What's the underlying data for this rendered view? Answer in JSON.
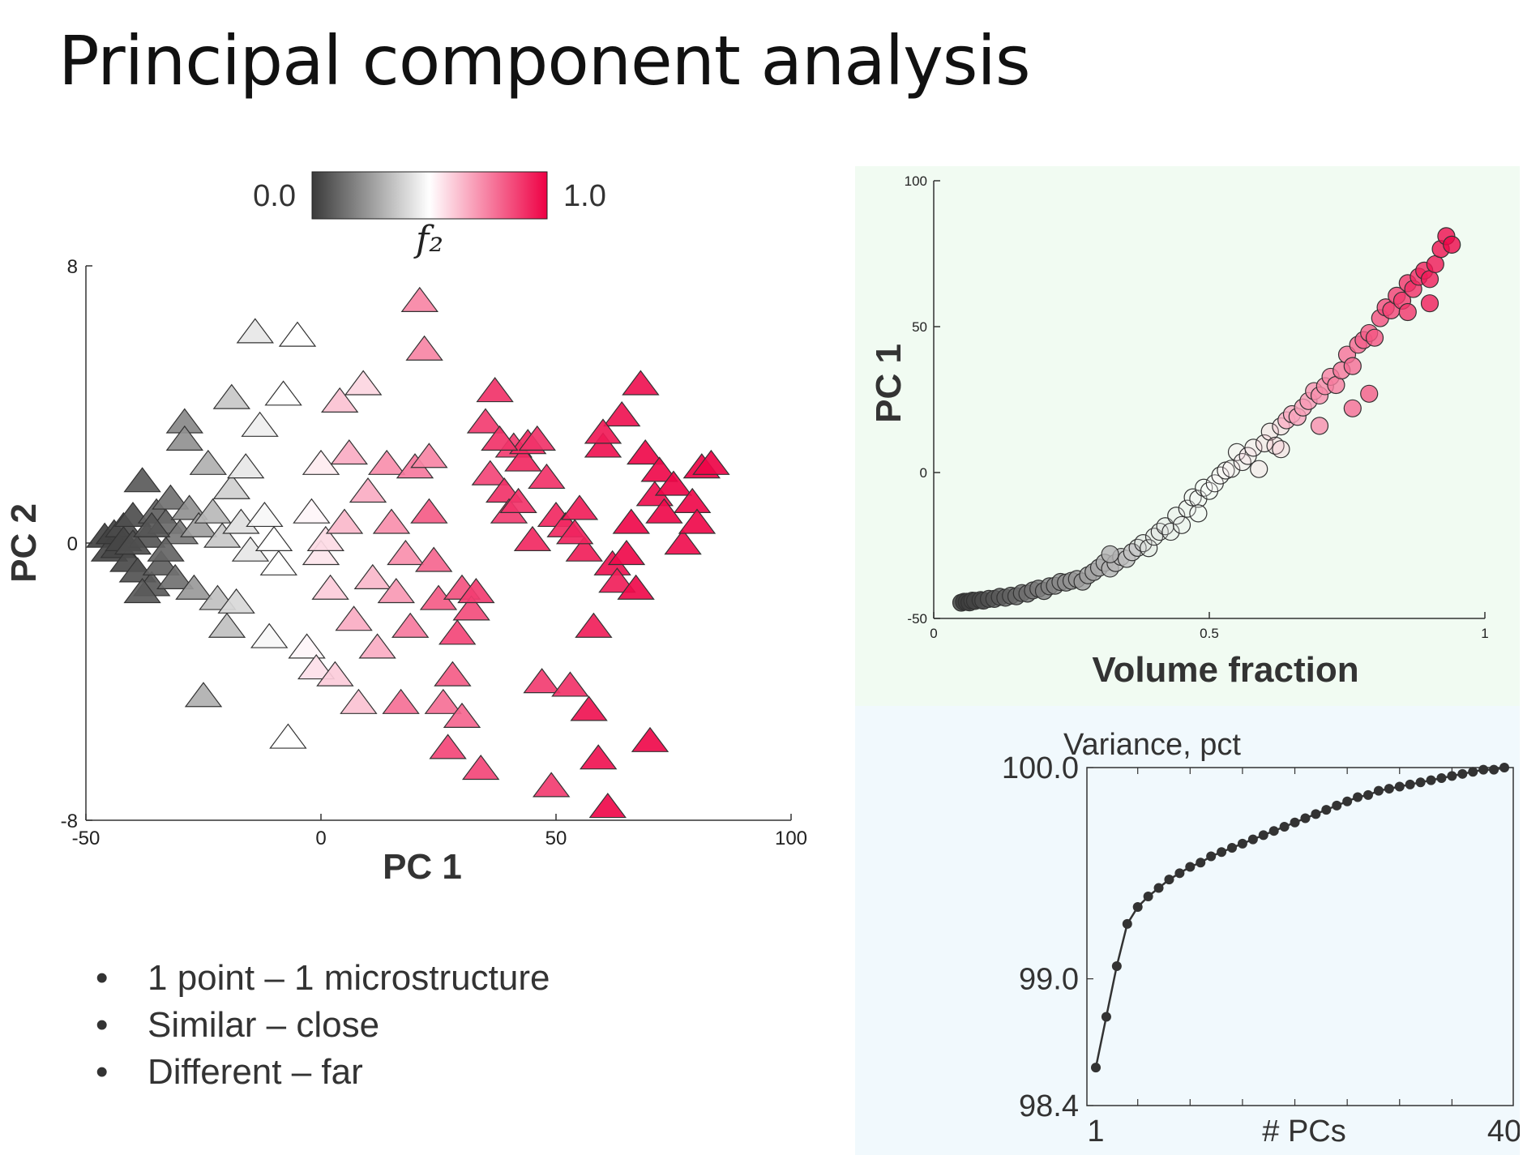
{
  "slide": {
    "title": "Principal component analysis",
    "bullets": [
      "1 point  – 1 microstructure",
      "Similar – close",
      "Different – far"
    ]
  },
  "colors": {
    "low": "#3a3a3a",
    "mid": "#ffffff",
    "high": "#ee0044",
    "scatter_panel_bg": "#f1fbf2",
    "variance_panel_bg": "#f1f9fd",
    "line": "#333333"
  },
  "chart_data": [
    {
      "type": "scatter",
      "marker": "triangle",
      "xlabel": "PC 1",
      "ylabel": "PC 2",
      "xlim": [
        -50,
        100
      ],
      "ylim": [
        -8,
        8
      ],
      "xticks": [
        "-50",
        "0",
        "50",
        "100"
      ],
      "yticks": [
        "-8",
        "0",
        "8"
      ],
      "colorbar": {
        "label": "f₂",
        "min_label": "0.0",
        "max_label": "1.0",
        "range": [
          0,
          1
        ]
      },
      "points": [
        {
          "x": -46,
          "y": 0.2,
          "c": 0.02
        },
        {
          "x": -45,
          "y": -0.2,
          "c": 0.03
        },
        {
          "x": -44,
          "y": 0.3,
          "c": 0.02
        },
        {
          "x": -43,
          "y": -0.1,
          "c": 0.03
        },
        {
          "x": -42,
          "y": 0.5,
          "c": 0.04
        },
        {
          "x": -41,
          "y": -0.5,
          "c": 0.04
        },
        {
          "x": -42,
          "y": 0.1,
          "c": 0.03
        },
        {
          "x": -40,
          "y": 0.8,
          "c": 0.05
        },
        {
          "x": -39,
          "y": -0.8,
          "c": 0.06
        },
        {
          "x": -38,
          "y": 1.8,
          "c": 0.08
        },
        {
          "x": -37,
          "y": 0.2,
          "c": 0.07
        },
        {
          "x": -36,
          "y": -1.2,
          "c": 0.08
        },
        {
          "x": -35,
          "y": 0.9,
          "c": 0.1
        },
        {
          "x": -34,
          "y": -0.6,
          "c": 0.1
        },
        {
          "x": -33,
          "y": 0.6,
          "c": 0.12
        },
        {
          "x": -32,
          "y": 1.3,
          "c": 0.14
        },
        {
          "x": -31,
          "y": -1.0,
          "c": 0.14
        },
        {
          "x": -30,
          "y": 0.3,
          "c": 0.16
        },
        {
          "x": -38,
          "y": -1.4,
          "c": 0.08
        },
        {
          "x": -33,
          "y": -0.2,
          "c": 0.11
        },
        {
          "x": -40,
          "y": 0.0,
          "c": 0.05
        },
        {
          "x": -36,
          "y": 0.5,
          "c": 0.07
        },
        {
          "x": -29,
          "y": 3.5,
          "c": 0.2
        },
        {
          "x": -29,
          "y": 3.0,
          "c": 0.22
        },
        {
          "x": -28,
          "y": 1.0,
          "c": 0.22
        },
        {
          "x": -27,
          "y": -1.3,
          "c": 0.24
        },
        {
          "x": -26,
          "y": 0.5,
          "c": 0.26
        },
        {
          "x": -24,
          "y": 2.3,
          "c": 0.3
        },
        {
          "x": -23,
          "y": 0.9,
          "c": 0.32
        },
        {
          "x": -22,
          "y": -1.6,
          "c": 0.34
        },
        {
          "x": -21,
          "y": 0.2,
          "c": 0.36
        },
        {
          "x": -20,
          "y": -2.4,
          "c": 0.34
        },
        {
          "x": -19,
          "y": 4.2,
          "c": 0.36
        },
        {
          "x": -19,
          "y": 1.6,
          "c": 0.38
        },
        {
          "x": -18,
          "y": -1.7,
          "c": 0.4
        },
        {
          "x": -17,
          "y": 0.6,
          "c": 0.42
        },
        {
          "x": -16,
          "y": 2.2,
          "c": 0.44
        },
        {
          "x": -15,
          "y": -0.2,
          "c": 0.44
        },
        {
          "x": -14,
          "y": 6.1,
          "c": 0.44
        },
        {
          "x": -13,
          "y": 3.4,
          "c": 0.46
        },
        {
          "x": -12,
          "y": 0.8,
          "c": 0.48
        },
        {
          "x": -11,
          "y": -2.7,
          "c": 0.48
        },
        {
          "x": -10,
          "y": 0.1,
          "c": 0.5
        },
        {
          "x": -9,
          "y": -0.6,
          "c": 0.5
        },
        {
          "x": -8,
          "y": 4.3,
          "c": 0.5
        },
        {
          "x": -7,
          "y": -5.6,
          "c": 0.5
        },
        {
          "x": -5,
          "y": 6.0,
          "c": 0.5
        },
        {
          "x": -25,
          "y": -4.4,
          "c": 0.3
        },
        {
          "x": -3,
          "y": -3.0,
          "c": 0.52
        },
        {
          "x": -2,
          "y": 0.9,
          "c": 0.52
        },
        {
          "x": 0,
          "y": 2.3,
          "c": 0.54
        },
        {
          "x": 0,
          "y": -0.3,
          "c": 0.55
        },
        {
          "x": -1,
          "y": -3.6,
          "c": 0.56
        },
        {
          "x": 1,
          "y": 0.1,
          "c": 0.57
        },
        {
          "x": 2,
          "y": -1.3,
          "c": 0.6
        },
        {
          "x": 3,
          "y": -3.8,
          "c": 0.6
        },
        {
          "x": 4,
          "y": 4.1,
          "c": 0.62
        },
        {
          "x": 5,
          "y": 0.6,
          "c": 0.64
        },
        {
          "x": 6,
          "y": 2.6,
          "c": 0.66
        },
        {
          "x": 7,
          "y": -2.2,
          "c": 0.66
        },
        {
          "x": 8,
          "y": -4.6,
          "c": 0.62
        },
        {
          "x": 9,
          "y": 4.6,
          "c": 0.58
        },
        {
          "x": 10,
          "y": 1.5,
          "c": 0.66
        },
        {
          "x": 11,
          "y": -1.0,
          "c": 0.64
        },
        {
          "x": 12,
          "y": -3.0,
          "c": 0.66
        },
        {
          "x": 14,
          "y": 2.3,
          "c": 0.72
        },
        {
          "x": 15,
          "y": 0.6,
          "c": 0.72
        },
        {
          "x": 16,
          "y": -1.4,
          "c": 0.7
        },
        {
          "x": 17,
          "y": -4.6,
          "c": 0.78
        },
        {
          "x": 18,
          "y": -0.3,
          "c": 0.72
        },
        {
          "x": 19,
          "y": -2.4,
          "c": 0.76
        },
        {
          "x": 20,
          "y": 2.2,
          "c": 0.76
        },
        {
          "x": 21,
          "y": 7.0,
          "c": 0.74
        },
        {
          "x": 22,
          "y": 5.6,
          "c": 0.74
        },
        {
          "x": 23,
          "y": 2.5,
          "c": 0.74
        },
        {
          "x": 23,
          "y": 0.9,
          "c": 0.82
        },
        {
          "x": 24,
          "y": -0.5,
          "c": 0.8
        },
        {
          "x": 25,
          "y": -1.6,
          "c": 0.82
        },
        {
          "x": 26,
          "y": -4.6,
          "c": 0.78
        },
        {
          "x": 27,
          "y": -5.9,
          "c": 0.86
        },
        {
          "x": 28,
          "y": -3.8,
          "c": 0.82
        },
        {
          "x": 29,
          "y": -2.6,
          "c": 0.86
        },
        {
          "x": 30,
          "y": -1.3,
          "c": 0.84
        },
        {
          "x": 30,
          "y": -5.0,
          "c": 0.8
        },
        {
          "x": 32,
          "y": -1.9,
          "c": 0.85
        },
        {
          "x": 33,
          "y": -1.4,
          "c": 0.88
        },
        {
          "x": 34,
          "y": -6.5,
          "c": 0.86
        },
        {
          "x": 35,
          "y": 3.5,
          "c": 0.88
        },
        {
          "x": 36,
          "y": 2.0,
          "c": 0.86
        },
        {
          "x": 37,
          "y": 4.4,
          "c": 0.9
        },
        {
          "x": 39,
          "y": 1.5,
          "c": 0.9
        },
        {
          "x": 40,
          "y": 0.9,
          "c": 0.88
        },
        {
          "x": 41,
          "y": 2.8,
          "c": 0.88
        },
        {
          "x": 42,
          "y": 1.2,
          "c": 0.9
        },
        {
          "x": 43,
          "y": 2.4,
          "c": 0.92
        },
        {
          "x": 44,
          "y": 2.9,
          "c": 0.92
        },
        {
          "x": 45,
          "y": 0.1,
          "c": 0.92
        },
        {
          "x": 46,
          "y": 3.0,
          "c": 0.9
        },
        {
          "x": 47,
          "y": -4.0,
          "c": 0.88
        },
        {
          "x": 48,
          "y": 1.9,
          "c": 0.9
        },
        {
          "x": 49,
          "y": -7.0,
          "c": 0.88
        },
        {
          "x": 50,
          "y": 0.8,
          "c": 0.92
        },
        {
          "x": 52,
          "y": 0.5,
          "c": 0.92
        },
        {
          "x": 53,
          "y": -4.1,
          "c": 0.9
        },
        {
          "x": 55,
          "y": 1.0,
          "c": 0.94
        },
        {
          "x": 56,
          "y": -0.2,
          "c": 0.94
        },
        {
          "x": 57,
          "y": -4.8,
          "c": 0.96
        },
        {
          "x": 58,
          "y": -2.4,
          "c": 0.94
        },
        {
          "x": 59,
          "y": -6.2,
          "c": 0.96
        },
        {
          "x": 60,
          "y": 2.8,
          "c": 0.96
        },
        {
          "x": 61,
          "y": -7.6,
          "c": 0.98
        },
        {
          "x": 62,
          "y": -0.6,
          "c": 0.96
        },
        {
          "x": 63,
          "y": -1.1,
          "c": 0.94
        },
        {
          "x": 64,
          "y": 3.7,
          "c": 0.96
        },
        {
          "x": 65,
          "y": -0.3,
          "c": 0.98
        },
        {
          "x": 66,
          "y": 0.6,
          "c": 0.98
        },
        {
          "x": 67,
          "y": -1.3,
          "c": 0.98
        },
        {
          "x": 68,
          "y": 4.6,
          "c": 0.96
        },
        {
          "x": 69,
          "y": 2.6,
          "c": 0.98
        },
        {
          "x": 70,
          "y": -5.7,
          "c": 0.98
        },
        {
          "x": 71,
          "y": 1.4,
          "c": 0.97
        },
        {
          "x": 72,
          "y": 2.1,
          "c": 0.98
        },
        {
          "x": 73,
          "y": 0.9,
          "c": 0.98
        },
        {
          "x": 75,
          "y": 1.7,
          "c": 0.99
        },
        {
          "x": 77,
          "y": 0.0,
          "c": 0.97
        },
        {
          "x": 79,
          "y": 1.2,
          "c": 0.98
        },
        {
          "x": 80,
          "y": 0.6,
          "c": 0.98
        },
        {
          "x": 81,
          "y": 2.2,
          "c": 0.99
        },
        {
          "x": 83,
          "y": 2.3,
          "c": 0.99
        },
        {
          "x": 60,
          "y": 3.2,
          "c": 0.95
        },
        {
          "x": 54,
          "y": 0.3,
          "c": 0.93
        },
        {
          "x": 38,
          "y": 3.0,
          "c": 0.9
        }
      ]
    },
    {
      "type": "scatter",
      "marker": "circle",
      "xlabel": "Volume fraction",
      "ylabel": "PC 1",
      "xlim": [
        0,
        1
      ],
      "ylim": [
        -50,
        100
      ],
      "xticks": [
        "0",
        "0.5",
        "1"
      ],
      "yticks": [
        "-50",
        "0",
        "50",
        "100"
      ],
      "points": [
        {
          "x": 0.05,
          "y": -44.6
        },
        {
          "x": 0.055,
          "y": -44.3
        },
        {
          "x": 0.06,
          "y": -44.3
        },
        {
          "x": 0.065,
          "y": -44.5
        },
        {
          "x": 0.07,
          "y": -43.9
        },
        {
          "x": 0.075,
          "y": -44.0
        },
        {
          "x": 0.085,
          "y": -43.7
        },
        {
          "x": 0.09,
          "y": -43.9
        },
        {
          "x": 0.1,
          "y": -43.3
        },
        {
          "x": 0.11,
          "y": -43.3
        },
        {
          "x": 0.12,
          "y": -42.6
        },
        {
          "x": 0.13,
          "y": -42.9
        },
        {
          "x": 0.14,
          "y": -42.2
        },
        {
          "x": 0.15,
          "y": -42.4
        },
        {
          "x": 0.16,
          "y": -41.3
        },
        {
          "x": 0.17,
          "y": -41.5
        },
        {
          "x": 0.18,
          "y": -40.4
        },
        {
          "x": 0.19,
          "y": -39.8
        },
        {
          "x": 0.2,
          "y": -40.6
        },
        {
          "x": 0.21,
          "y": -39.0
        },
        {
          "x": 0.22,
          "y": -38.8
        },
        {
          "x": 0.23,
          "y": -37.5
        },
        {
          "x": 0.24,
          "y": -37.7
        },
        {
          "x": 0.25,
          "y": -37.1
        },
        {
          "x": 0.26,
          "y": -36.5
        },
        {
          "x": 0.27,
          "y": -37.4
        },
        {
          "x": 0.28,
          "y": -35.2
        },
        {
          "x": 0.29,
          "y": -34.1
        },
        {
          "x": 0.3,
          "y": -32.6
        },
        {
          "x": 0.31,
          "y": -30.9
        },
        {
          "x": 0.32,
          "y": -32.9
        },
        {
          "x": 0.33,
          "y": -31.0
        },
        {
          "x": 0.34,
          "y": -28.9
        },
        {
          "x": 0.35,
          "y": -29.6
        },
        {
          "x": 0.36,
          "y": -27.3
        },
        {
          "x": 0.37,
          "y": -25.8
        },
        {
          "x": 0.38,
          "y": -24.2
        },
        {
          "x": 0.39,
          "y": -25.9
        },
        {
          "x": 0.4,
          "y": -22.0
        },
        {
          "x": 0.41,
          "y": -20.3
        },
        {
          "x": 0.42,
          "y": -18.4
        },
        {
          "x": 0.43,
          "y": -20.3
        },
        {
          "x": 0.44,
          "y": -14.8
        },
        {
          "x": 0.45,
          "y": -18.0
        },
        {
          "x": 0.46,
          "y": -12.4
        },
        {
          "x": 0.47,
          "y": -8.5
        },
        {
          "x": 0.48,
          "y": -9.0
        },
        {
          "x": 0.49,
          "y": -5.2
        },
        {
          "x": 0.5,
          "y": -6.3
        },
        {
          "x": 0.51,
          "y": -3.7
        },
        {
          "x": 0.52,
          "y": -1.0
        },
        {
          "x": 0.53,
          "y": 0.7
        },
        {
          "x": 0.54,
          "y": 1.3
        },
        {
          "x": 0.55,
          "y": 7.0
        },
        {
          "x": 0.56,
          "y": 3.6
        },
        {
          "x": 0.57,
          "y": 5.7
        },
        {
          "x": 0.58,
          "y": 8.5
        },
        {
          "x": 0.59,
          "y": 1.2
        },
        {
          "x": 0.6,
          "y": 10.0
        },
        {
          "x": 0.61,
          "y": 14.0
        },
        {
          "x": 0.62,
          "y": 9.2
        },
        {
          "x": 0.63,
          "y": 15.8
        },
        {
          "x": 0.64,
          "y": 17.9
        },
        {
          "x": 0.65,
          "y": 20.0
        },
        {
          "x": 0.66,
          "y": 19.1
        },
        {
          "x": 0.67,
          "y": 22.3
        },
        {
          "x": 0.68,
          "y": 24.5
        },
        {
          "x": 0.69,
          "y": 27.9
        },
        {
          "x": 0.7,
          "y": 26.4
        },
        {
          "x": 0.71,
          "y": 29.6
        },
        {
          "x": 0.72,
          "y": 32.8
        },
        {
          "x": 0.73,
          "y": 30.0
        },
        {
          "x": 0.74,
          "y": 35.0
        },
        {
          "x": 0.75,
          "y": 40.4
        },
        {
          "x": 0.76,
          "y": 36.5
        },
        {
          "x": 0.77,
          "y": 43.8
        },
        {
          "x": 0.78,
          "y": 45.4
        },
        {
          "x": 0.79,
          "y": 47.8
        },
        {
          "x": 0.8,
          "y": 46.2
        },
        {
          "x": 0.81,
          "y": 52.9
        },
        {
          "x": 0.82,
          "y": 56.6
        },
        {
          "x": 0.83,
          "y": 55.6
        },
        {
          "x": 0.84,
          "y": 60.6
        },
        {
          "x": 0.85,
          "y": 58.9
        },
        {
          "x": 0.86,
          "y": 64.9
        },
        {
          "x": 0.87,
          "y": 62.9
        },
        {
          "x": 0.88,
          "y": 67.1
        },
        {
          "x": 0.89,
          "y": 69.2
        },
        {
          "x": 0.9,
          "y": 66.3
        },
        {
          "x": 0.91,
          "y": 71.4
        },
        {
          "x": 0.92,
          "y": 76.6
        },
        {
          "x": 0.93,
          "y": 81.0
        },
        {
          "x": 0.94,
          "y": 78.1
        },
        {
          "x": 0.7,
          "y": 16.0
        },
        {
          "x": 0.63,
          "y": 8.0
        },
        {
          "x": 0.76,
          "y": 22.0
        },
        {
          "x": 0.79,
          "y": 27.0
        },
        {
          "x": 0.86,
          "y": 55.0
        },
        {
          "x": 0.9,
          "y": 58.0
        },
        {
          "x": 0.32,
          "y": -28.0
        },
        {
          "x": 0.48,
          "y": -14.0
        }
      ]
    },
    {
      "type": "line",
      "title": "Variance, pct",
      "xlabel": "# PCs",
      "xlim": [
        1,
        40
      ],
      "ylim": [
        98.4,
        100.0
      ],
      "xtick_labels": [
        "1",
        "40"
      ],
      "ytick_labels": [
        "98.4",
        "99.0",
        "100.0"
      ],
      "x": [
        1,
        2,
        3,
        4,
        5,
        6,
        7,
        8,
        9,
        10,
        11,
        12,
        13,
        14,
        15,
        16,
        17,
        18,
        19,
        20,
        21,
        22,
        23,
        24,
        25,
        26,
        27,
        28,
        29,
        30,
        31,
        32,
        33,
        34,
        35,
        36,
        37,
        38,
        39,
        40
      ],
      "values": [
        98.58,
        98.82,
        99.06,
        99.26,
        99.34,
        99.39,
        99.43,
        99.47,
        99.5,
        99.53,
        99.55,
        99.58,
        99.6,
        99.62,
        99.64,
        99.66,
        99.68,
        99.7,
        99.72,
        99.74,
        99.76,
        99.78,
        99.8,
        99.82,
        99.84,
        99.86,
        99.87,
        99.89,
        99.9,
        99.91,
        99.92,
        99.93,
        99.94,
        99.95,
        99.96,
        99.97,
        99.98,
        99.99,
        99.99,
        100.0
      ]
    }
  ]
}
